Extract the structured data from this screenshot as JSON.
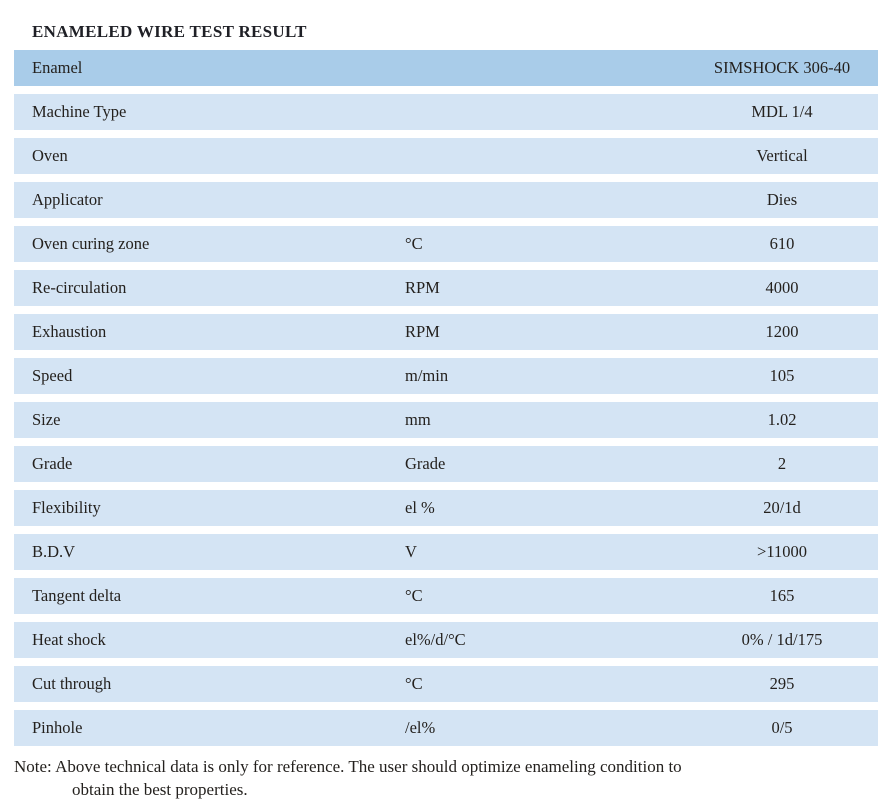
{
  "title": "ENAMELED WIRE TEST RESULT",
  "table": {
    "rows": [
      {
        "label": "Enamel",
        "unit": "",
        "value": "SIMSHOCK 306-40",
        "highlight": true
      },
      {
        "label": "Machine Type",
        "unit": "",
        "value": "MDL 1/4",
        "highlight": false
      },
      {
        "label": "Oven",
        "unit": "",
        "value": "Vertical",
        "highlight": false
      },
      {
        "label": "Applicator",
        "unit": "",
        "value": "Dies",
        "highlight": false
      },
      {
        "label": "Oven curing zone",
        "unit": "°C",
        "value": "610",
        "highlight": false
      },
      {
        "label": "Re-circulation",
        "unit": "RPM",
        "value": "4000",
        "highlight": false
      },
      {
        "label": "Exhaustion",
        "unit": "RPM",
        "value": "1200",
        "highlight": false
      },
      {
        "label": "Speed",
        "unit": "m/min",
        "value": "105",
        "highlight": false
      },
      {
        "label": "Size",
        "unit": "mm",
        "value": "1.02",
        "highlight": false
      },
      {
        "label": "Grade",
        "unit": "Grade",
        "value": "2",
        "highlight": false
      },
      {
        "label": "Flexibility",
        "unit": "el %",
        "value": "20/1d",
        "highlight": false
      },
      {
        "label": "B.D.V",
        "unit": "V",
        "value": ">11000",
        "highlight": false
      },
      {
        "label": "Tangent delta",
        "unit": "°C",
        "value": "165",
        "highlight": false
      },
      {
        "label": "Heat shock",
        "unit": "el%/d/°C",
        "value": "0% / 1d/175",
        "highlight": false
      },
      {
        "label": "Cut through",
        "unit": "°C",
        "value": "295",
        "highlight": false
      },
      {
        "label": "Pinhole",
        "unit": "/el%",
        "value": "0/5",
        "highlight": false
      }
    ]
  },
  "note": {
    "line1": "Note: Above technical data is only for reference. The user should optimize enameling condition to",
    "line2": "obtain the best properties."
  },
  "colors": {
    "row_highlight": "#a9cce9",
    "row_normal": "#d4e4f4",
    "text": "#24211e"
  }
}
